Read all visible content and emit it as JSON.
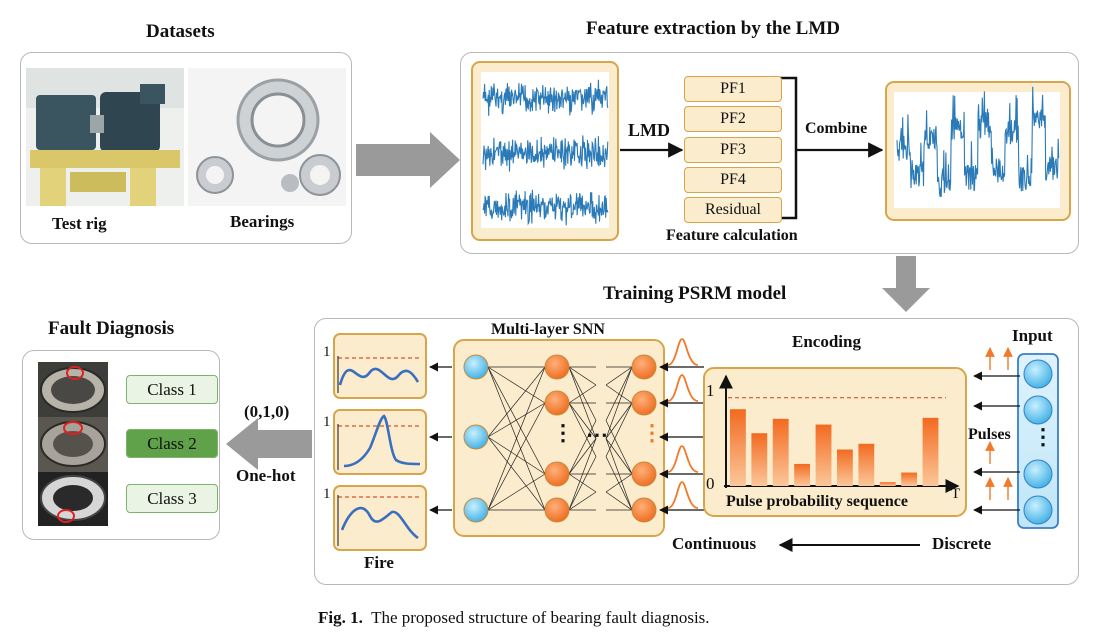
{
  "datasets": {
    "title": "Datasets",
    "test_rig_label": "Test rig",
    "bearings_label": "Bearings"
  },
  "lmd": {
    "title": "Feature extraction by the LMD",
    "arrow_label": "LMD",
    "pfs": [
      "PF1",
      "PF2",
      "PF3",
      "PF4",
      "Residual"
    ],
    "feature_calc_label": "Feature calculation",
    "combine_label": "Combine"
  },
  "training": {
    "title": "Training PSRM  model",
    "snn_label": "Multi-layer SNN",
    "encoding_label": "Encoding",
    "input_label": "Input",
    "pulses_label": "Pulses",
    "fire_label": "Fire",
    "fire_one_labels": [
      "1",
      "1",
      "1"
    ],
    "continuous_label": "Continuous",
    "discrete_label": "Discrete",
    "snn_dots": "⋯",
    "snn_vdots": "⋮",
    "input_vdots": "⋮",
    "chart": {
      "title": "Pulse probability sequence",
      "y_top": "1",
      "y_zero": "0",
      "x_end": "T"
    }
  },
  "fault": {
    "title": "Fault Diagnosis",
    "classes": [
      "Class 1",
      "Class 2",
      "Class 3"
    ],
    "selected_index": 1,
    "onehot_value": "(0,1,0)",
    "onehot_label": "One-hot"
  },
  "caption": {
    "prefix": "Fig. 1.",
    "text": "The proposed structure of bearing fault diagnosis."
  },
  "chart_data": {
    "type": "bar",
    "title": "Pulse probability sequence",
    "xlabel": "T",
    "ylabel": "",
    "ylim": [
      0,
      1
    ],
    "threshold": 0.92,
    "values": [
      0.8,
      0.55,
      0.7,
      0.23,
      0.64,
      0.38,
      0.44,
      0.04,
      0.14,
      0.71
    ]
  },
  "colors": {
    "panel_border": "#b8b8b8",
    "box_fill": "#fbeccd",
    "box_border": "#d8a54a",
    "signal_blue": "#2a7ab8",
    "bar_orange": "#f07a2a",
    "neuron_orange": "#f07a2a",
    "neuron_blue": "#45b7e8",
    "class_green": "#5fa24a",
    "arrow_gray": "#999999",
    "threshold_red": "#e0502a"
  }
}
